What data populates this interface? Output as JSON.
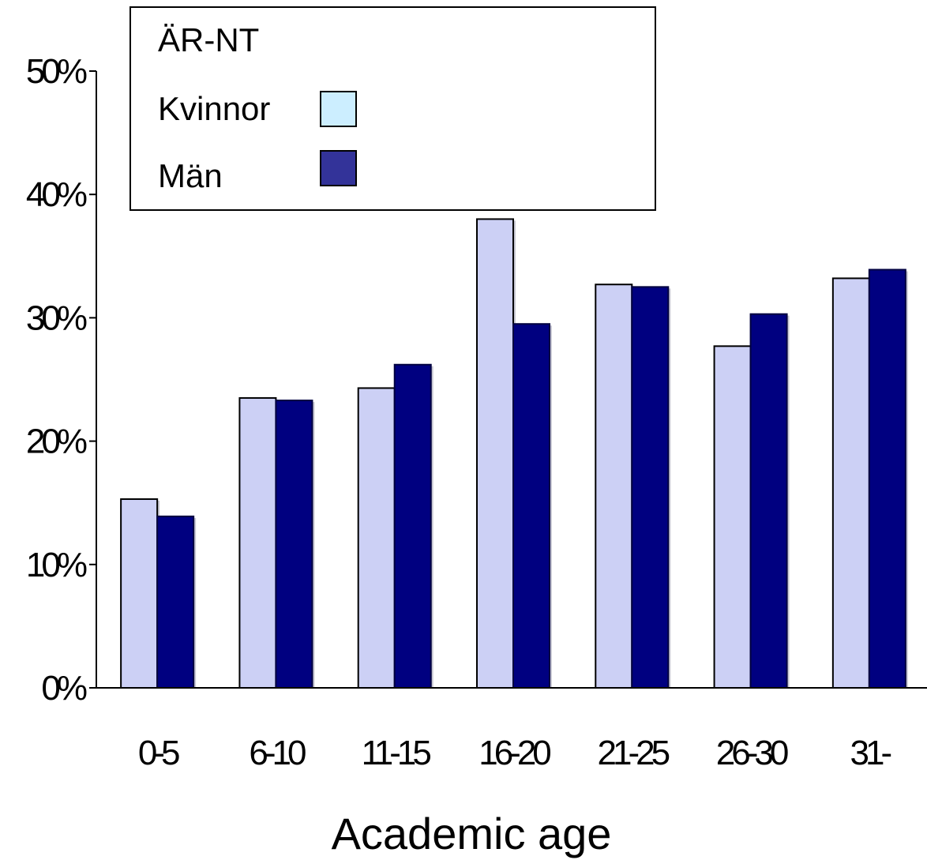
{
  "chart_data": {
    "type": "bar",
    "categories": [
      "0-5",
      "6-10",
      "11-15",
      "16-20",
      "21-25",
      "26-30",
      "31-"
    ],
    "category_labels_as_printed": [
      "0-5",
      "6-10",
      "11-15",
      "16-20",
      "21-25",
      "26-30",
      "31-"
    ],
    "series": [
      {
        "name": "Kvinnor",
        "values": [
          15.3,
          23.5,
          24.3,
          38.0,
          32.7,
          27.7,
          33.2
        ],
        "color": "#ccd0f5",
        "legend_color": "#cceeff"
      },
      {
        "name": "Män",
        "values": [
          13.9,
          23.3,
          26.2,
          29.5,
          32.5,
          30.3,
          33.9
        ],
        "color": "#000080",
        "legend_color": "#333399"
      }
    ],
    "yticks": [
      "0%",
      "10%",
      "20%",
      "30%",
      "40%",
      "50%"
    ],
    "ylim": [
      0,
      50
    ],
    "xlabel": "Academic age",
    "ylabel": "",
    "legend": {
      "title": "ÄR-NT",
      "placement": "top-left"
    },
    "grid": false
  }
}
